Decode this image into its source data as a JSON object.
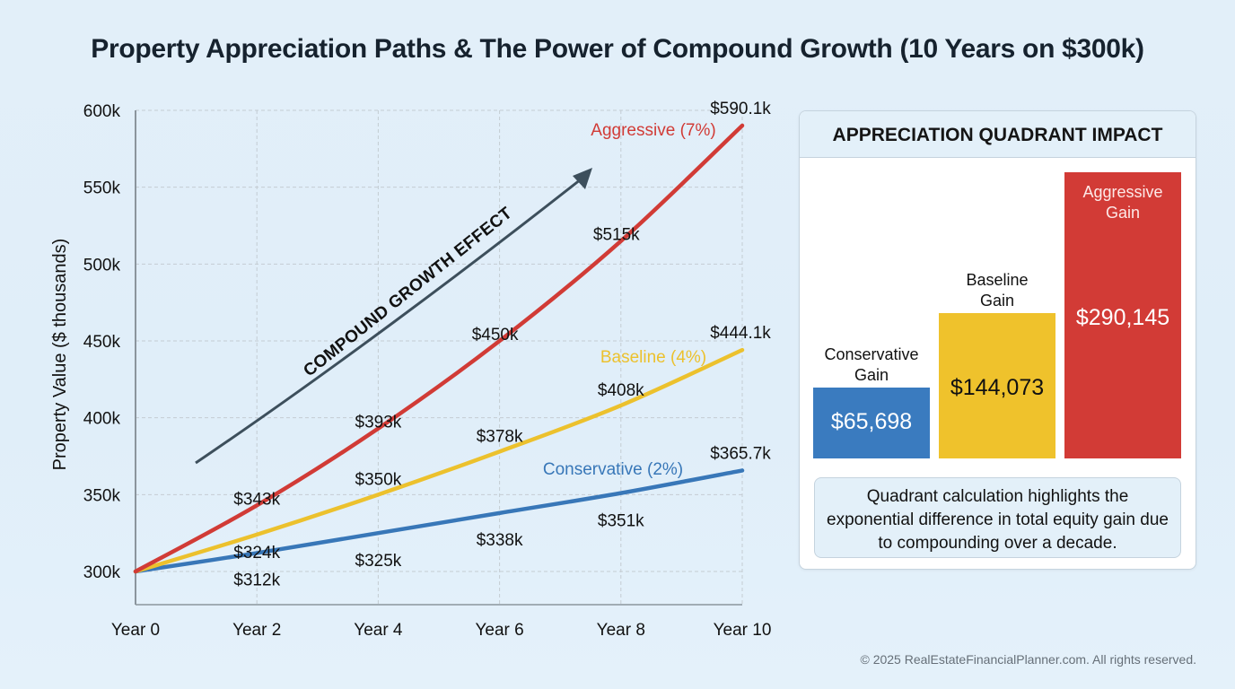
{
  "title": "Property Appreciation Paths & The Power of Compound Growth (10 Years on $300k)",
  "chart_data": [
    {
      "type": "line",
      "title": "Property Appreciation Paths & The Power of Compound Growth (10 Years on $300k)",
      "xlabel": "",
      "ylabel": "Property Value ($ thousands)",
      "x": [
        0,
        2,
        4,
        6,
        8,
        10
      ],
      "categories": [
        "Year 0",
        "Year 2",
        "Year 4",
        "Year 6",
        "Year 8",
        "Year 10"
      ],
      "ylim": [
        300,
        600
      ],
      "yticks": [
        300,
        350,
        400,
        450,
        500,
        550,
        600
      ],
      "ytick_labels": [
        "300k",
        "350k",
        "400k",
        "450k",
        "500k",
        "550k",
        "600k"
      ],
      "grid": true,
      "legend": "inline-labels",
      "series": [
        {
          "name": "Aggressive (7%)",
          "color": "#d13b36",
          "values": [
            300,
            343,
            393,
            450,
            515,
            590.1
          ],
          "point_labels": [
            "",
            "$343k",
            "$393k",
            "$450k",
            "$515k",
            "$590.1k"
          ]
        },
        {
          "name": "Baseline (4%)",
          "color": "#ecc12d",
          "values": [
            300,
            324,
            350,
            378,
            408,
            444.1
          ],
          "point_labels": [
            "",
            "$324k",
            "$350k",
            "$378k",
            "$408k",
            "$444.1k"
          ]
        },
        {
          "name": "Conservative (2%)",
          "color": "#3877b8",
          "values": [
            300,
            312,
            325,
            338,
            351,
            365.7
          ],
          "point_labels": [
            "",
            "$312k",
            "$325k",
            "$338k",
            "$351k",
            "$365.7k"
          ]
        }
      ],
      "annotations": [
        {
          "text": "COMPOUND GROWTH EFFECT",
          "type": "arrow",
          "color": "#3d4f5c"
        }
      ]
    },
    {
      "type": "bar",
      "title": "APPRECIATION QUADRANT IMPACT",
      "categories": [
        "Conservative Gain",
        "Baseline Gain",
        "Aggressive Gain"
      ],
      "values": [
        65698,
        144073,
        290145
      ],
      "value_labels": [
        "$65,698",
        "$144,073",
        "$290,145"
      ],
      "colors": [
        "#3a7bbf",
        "#efc22c",
        "#d23b36"
      ]
    }
  ],
  "card": {
    "header": "APPRECIATION QUADRANT IMPACT",
    "bars": [
      {
        "label_line1": "Conservative",
        "label_line2": "Gain",
        "value": "$65,698"
      },
      {
        "label_line1": "Baseline",
        "label_line2": "Gain",
        "value": "$144,073"
      },
      {
        "label_line1": "Aggressive",
        "label_line2": "Gain",
        "value": "$290,145"
      }
    ],
    "note": "Quadrant calculation highlights the exponential difference in total equity gain due to compounding over a decade."
  },
  "footer": "© 2025 RealEstateFinancialPlanner.com. All rights reserved."
}
